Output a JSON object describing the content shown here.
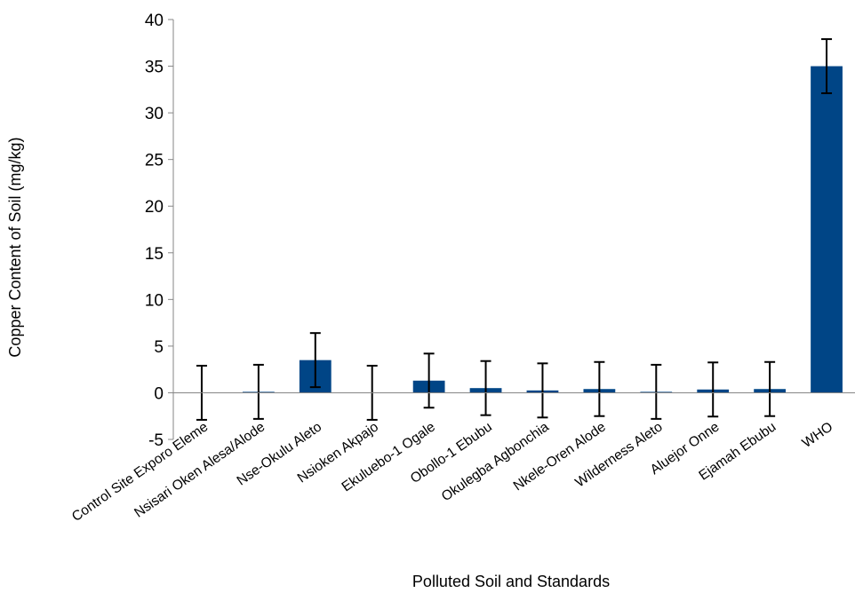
{
  "chart_data": {
    "type": "bar",
    "title": "",
    "xlabel": "Polluted Soil and Standards",
    "ylabel": "Copper Content of Soil (mg/kg)",
    "ylim": [
      -5,
      40
    ],
    "yticks": [
      -5,
      0,
      5,
      10,
      15,
      20,
      25,
      30,
      35,
      40
    ],
    "grid": false,
    "legend": "none",
    "bar_color": "#004586",
    "categories": [
      "Control Site Exporo Eleme",
      "Nsisari Oken Alesa/Alode",
      "Nse-Okulu Aleto",
      "Nsioken Akpajo",
      "Ekuluebo-1 Ogale",
      "Obollo-1 Ebubu",
      "Okulegba Agbonchia",
      "Nkele-Oren Alode",
      "Wilderness Aleto",
      "Aluejor Onne",
      "Ejamah Ebubu",
      "WHO"
    ],
    "values": [
      0.0,
      0.1,
      3.5,
      0.0,
      1.3,
      0.5,
      0.25,
      0.4,
      0.1,
      0.35,
      0.4,
      35.0
    ],
    "error": [
      2.9,
      2.9,
      2.9,
      2.9,
      2.9,
      2.9,
      2.9,
      2.9,
      2.9,
      2.9,
      2.9,
      2.9
    ]
  }
}
